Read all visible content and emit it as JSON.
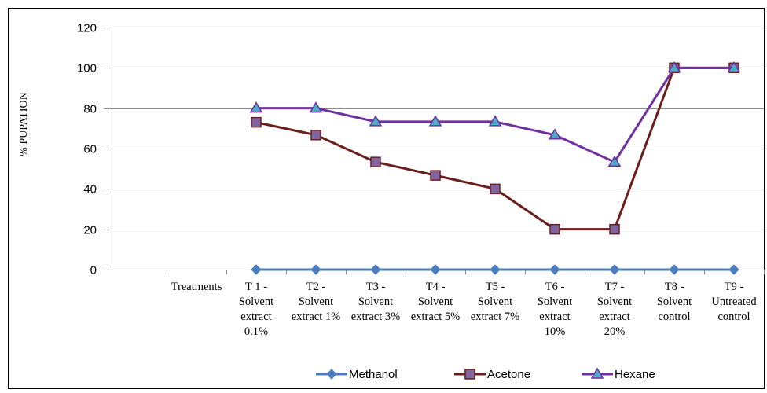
{
  "chart_data": {
    "type": "line",
    "title": "",
    "xlabel": "",
    "ylabel": "% PUPATION",
    "ylim": [
      0,
      120
    ],
    "yticks": [
      0,
      20,
      40,
      60,
      80,
      100,
      120
    ],
    "grid": true,
    "legend_position": "bottom",
    "categories": [
      [
        "Treatments"
      ],
      [
        "T 1 -",
        "Solvent",
        "extract",
        "0.1%"
      ],
      [
        "T2 -",
        "Solvent",
        "extract 1%"
      ],
      [
        "T3 -",
        "Solvent",
        "extract 3%"
      ],
      [
        "T4 -",
        "Solvent",
        "extract 5%"
      ],
      [
        "T5 -",
        "Solvent",
        "extract 7%"
      ],
      [
        "T6 -",
        "Solvent",
        "extract",
        "10%"
      ],
      [
        "T7 -",
        "Solvent",
        "extract",
        "20%"
      ],
      [
        "T8 -",
        "Solvent",
        "control"
      ],
      [
        "T9 -",
        "Untreated",
        "control"
      ]
    ],
    "series": [
      {
        "name": "Methanol",
        "color": "#4a7ebf",
        "marker": "diamond",
        "values": [
          null,
          0,
          0,
          0,
          0,
          0,
          0,
          0,
          0,
          0
        ]
      },
      {
        "name": "Acetone",
        "color": "#6b1f1c",
        "marker_fill": "#8064a2",
        "marker": "square",
        "values": [
          null,
          73,
          66.7,
          53.3,
          46.7,
          40,
          20,
          20,
          100,
          100
        ]
      },
      {
        "name": "Hexane",
        "color": "#7030a0",
        "marker_fill": "#4bacc6",
        "marker": "triangle",
        "values": [
          null,
          80,
          80,
          73.3,
          73.3,
          73.3,
          66.7,
          53.3,
          100,
          100
        ]
      }
    ]
  }
}
